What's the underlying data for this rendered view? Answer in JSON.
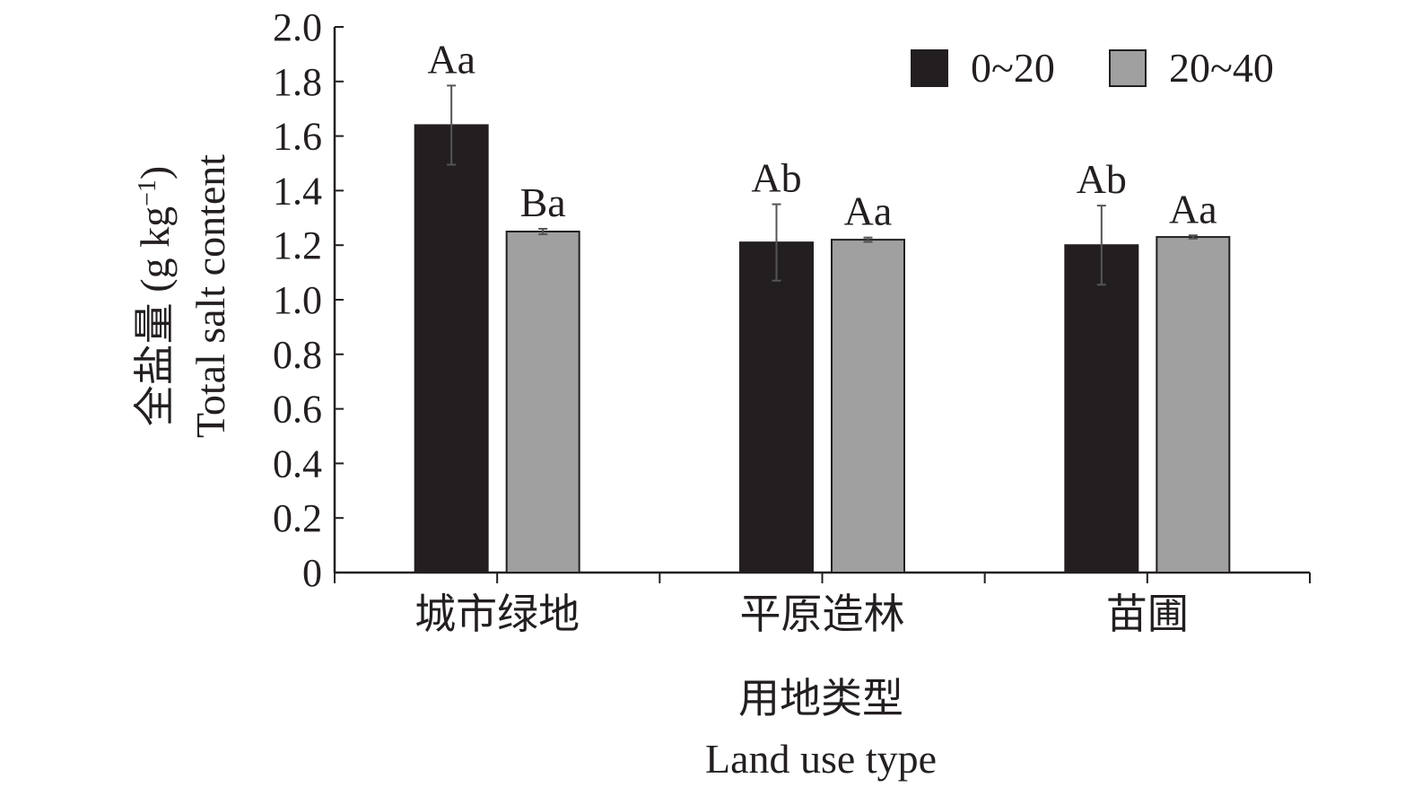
{
  "chart_data": {
    "type": "bar",
    "categories": [
      "城市绿地",
      "平原造林",
      "苗圃"
    ],
    "series": [
      {
        "name": "0~20",
        "color": "#231f20",
        "values": [
          1.64,
          1.21,
          1.2
        ],
        "errors": [
          0.145,
          0.14,
          0.145
        ],
        "labels": [
          "Aa",
          "Ab",
          "Ab"
        ]
      },
      {
        "name": "20~40",
        "color": "#a0a0a0",
        "values": [
          1.25,
          1.22,
          1.23
        ],
        "errors": [
          0.01,
          0.008,
          0.006
        ],
        "labels": [
          "Ba",
          "Aa",
          "Aa"
        ]
      }
    ],
    "xlabel_cn": "用地类型",
    "xlabel_en": "Land use type",
    "ylabel_cn": "全盐量 (g kg",
    "ylabel_exp": "−1",
    "ylabel_close": ")",
    "ylabel_en": "Total salt content",
    "ylim": [
      0,
      2.0
    ],
    "yticks": [
      "0",
      "0.2",
      "0.4",
      "0.6",
      "0.8",
      "1.0",
      "1.2",
      "1.4",
      "1.6",
      "1.8",
      "2.0"
    ],
    "legend_position": "top-right",
    "grid": false
  }
}
